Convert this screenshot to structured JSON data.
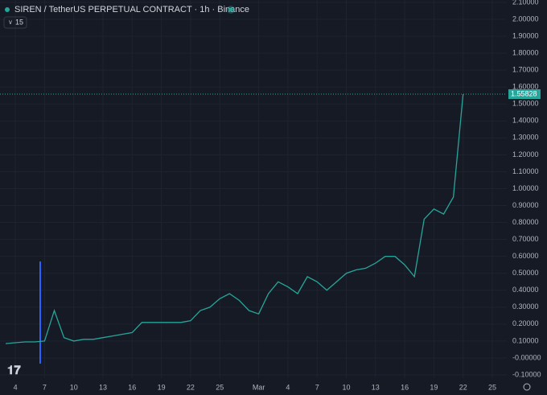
{
  "chart_data": {
    "type": "line",
    "title": "SIREN / TetherUS PERPETUAL CONTRACT · 1h · Binance",
    "badge": "15",
    "categories": [
      null,
      "4",
      null,
      null,
      "7",
      null,
      null,
      "10",
      null,
      null,
      "13",
      null,
      null,
      "16",
      null,
      null,
      "19",
      null,
      null,
      "22",
      null,
      null,
      "25",
      null,
      null,
      null,
      "Mar",
      null,
      null,
      "4",
      null,
      null,
      "7",
      null,
      null,
      "10",
      null,
      null,
      "13",
      null,
      null,
      "16",
      null,
      null,
      "19",
      null,
      null,
      "22",
      null,
      null,
      "25"
    ],
    "series": [
      {
        "name": "SIREN/USDT",
        "color": "#26a69a",
        "values": [
          0.085,
          0.09,
          0.095,
          0.095,
          0.1,
          0.28,
          0.12,
          0.1,
          0.11,
          0.11,
          0.12,
          0.13,
          0.14,
          0.15,
          0.21,
          0.21,
          0.21,
          0.21,
          0.21,
          0.22,
          0.28,
          0.3,
          0.35,
          0.38,
          0.34,
          0.28,
          0.26,
          0.38,
          0.45,
          0.42,
          0.38,
          0.48,
          0.45,
          0.4,
          0.45,
          0.5,
          0.52,
          0.53,
          0.56,
          0.6,
          0.6,
          0.55,
          0.48,
          0.82,
          0.88,
          0.85,
          0.95,
          1.55828,
          null,
          null,
          null
        ]
      }
    ],
    "last_price": 1.55828,
    "ylim": [
      -0.1,
      2.1
    ],
    "yticks": [
      {
        "value": -0.1,
        "label": "-0.10000"
      },
      {
        "value": 0,
        "label": "-0.00000"
      },
      {
        "value": 0.1,
        "label": "0.10000"
      },
      {
        "value": 0.2,
        "label": "0.20000"
      },
      {
        "value": 0.3,
        "label": "0.30000"
      },
      {
        "value": 0.4,
        "label": "0.40000"
      },
      {
        "value": 0.5,
        "label": "0.50000"
      },
      {
        "value": 0.6,
        "label": "0.60000"
      },
      {
        "value": 0.7,
        "label": "0.70000"
      },
      {
        "value": 0.8,
        "label": "0.80000"
      },
      {
        "value": 0.9,
        "label": "0.90000"
      },
      {
        "value": 1,
        "label": "1.00000"
      },
      {
        "value": 1.1,
        "label": "1.10000"
      },
      {
        "value": 1.2,
        "label": "1.20000"
      },
      {
        "value": 1.3,
        "label": "1.30000"
      },
      {
        "value": 1.4,
        "label": "1.40000"
      },
      {
        "value": 1.5,
        "label": "1.50000"
      },
      {
        "value": 1.6,
        "label": "1.60000"
      },
      {
        "value": 1.7,
        "label": "1.70000"
      },
      {
        "value": 1.8,
        "label": "1.80000"
      },
      {
        "value": 1.9,
        "label": "1.90000"
      },
      {
        "value": 2,
        "label": "2.00000"
      },
      {
        "value": 2.1,
        "label": "2.10000"
      }
    ],
    "grid": true
  }
}
